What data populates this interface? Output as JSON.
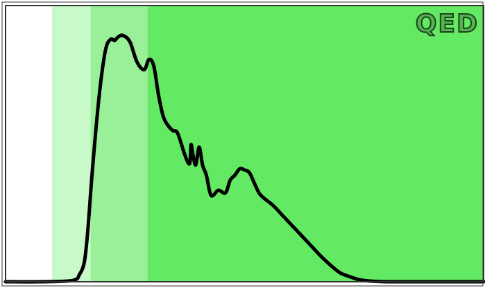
{
  "chart_data": {
    "type": "area",
    "title": "",
    "xlabel": "",
    "ylabel": "",
    "xlim": [
      0,
      1
    ],
    "ylim": [
      0,
      1
    ],
    "grid": false,
    "corner_label": "QED",
    "colors": {
      "line": "#000000",
      "band_light": "#c8f9c8",
      "band_mid": "#99f099",
      "band_dark": "#63e963",
      "frame": "#333333"
    },
    "bands": [
      {
        "from": 0.097,
        "to": 0.178,
        "color": "#c8f9c8"
      },
      {
        "from": 0.178,
        "to": 0.297,
        "color": "#99f099"
      },
      {
        "from": 0.297,
        "to": 1.0,
        "color": "#63e963"
      }
    ],
    "series": [
      {
        "x": [
          0.0,
          0.07,
          0.14,
          0.155,
          0.165,
          0.172,
          0.18,
          0.19,
          0.2,
          0.21,
          0.22,
          0.228,
          0.235,
          0.245,
          0.26,
          0.275,
          0.29,
          0.3,
          0.31,
          0.32,
          0.33,
          0.34,
          0.35,
          0.36,
          0.375,
          0.385,
          0.388,
          0.392,
          0.398,
          0.405,
          0.412,
          0.42,
          0.43,
          0.445,
          0.46,
          0.47,
          0.48,
          0.49,
          0.5,
          0.51,
          0.52,
          0.53,
          0.54,
          0.56,
          0.58,
          0.6,
          0.62,
          0.64,
          0.66,
          0.68,
          0.7,
          0.72,
          0.74,
          0.76,
          0.8,
          0.9,
          1.0
        ],
        "y": [
          0.0,
          0.0,
          0.005,
          0.03,
          0.08,
          0.2,
          0.4,
          0.62,
          0.8,
          0.92,
          0.955,
          0.95,
          0.963,
          0.97,
          0.945,
          0.865,
          0.835,
          0.875,
          0.85,
          0.735,
          0.65,
          0.615,
          0.595,
          0.585,
          0.5,
          0.465,
          0.54,
          0.5,
          0.46,
          0.53,
          0.46,
          0.42,
          0.34,
          0.36,
          0.35,
          0.4,
          0.42,
          0.445,
          0.44,
          0.43,
          0.39,
          0.35,
          0.33,
          0.3,
          0.26,
          0.22,
          0.18,
          0.14,
          0.1,
          0.065,
          0.035,
          0.02,
          0.008,
          0.003,
          0.0,
          0.0,
          0.0
        ]
      }
    ]
  }
}
